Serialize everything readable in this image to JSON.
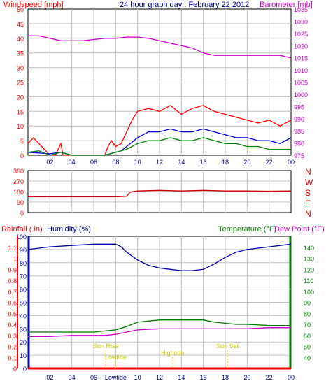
{
  "chart_data": [
    {
      "type": "line",
      "title": "24 hour graph day : February 22 2012",
      "left_axis_label": "Windspeed [mph]",
      "right_axis_label": "Barometer [mb]",
      "left_axis": {
        "min": 0,
        "max": 50,
        "ticks": [
          0,
          5,
          10,
          15,
          20,
          25,
          30,
          35,
          40,
          45,
          50
        ]
      },
      "right_axis": {
        "min": 975,
        "max": 1035,
        "ticks": [
          975,
          980,
          985,
          990,
          995,
          1000,
          1005,
          1010,
          1015,
          1020,
          1025,
          1030,
          1035
        ]
      },
      "x_axis": {
        "min": 0,
        "max": 24,
        "tick_labels": [
          "02",
          "04",
          "06",
          "08",
          "10",
          "12",
          "14",
          "16",
          "18",
          "20",
          "22",
          "00"
        ]
      },
      "series": [
        {
          "color": "#ff0000",
          "axis": "left",
          "points": [
            [
              0,
              4
            ],
            [
              0.5,
              6
            ],
            [
              1,
              4
            ],
            [
              1.5,
              2
            ],
            [
              2,
              0
            ],
            [
              2.5,
              0
            ],
            [
              3,
              4
            ],
            [
              3.2,
              0
            ],
            [
              4,
              0
            ],
            [
              5,
              0
            ],
            [
              6,
              0
            ],
            [
              7,
              0
            ],
            [
              7.3,
              3
            ],
            [
              7.6,
              5
            ],
            [
              8,
              3
            ],
            [
              8.5,
              4
            ],
            [
              9,
              8
            ],
            [
              9.5,
              12
            ],
            [
              10,
              15
            ],
            [
              11,
              16
            ],
            [
              12,
              15
            ],
            [
              13,
              17
            ],
            [
              14,
              14
            ],
            [
              15,
              16
            ],
            [
              16,
              17
            ],
            [
              17,
              15
            ],
            [
              18,
              14
            ],
            [
              19,
              13
            ],
            [
              20,
              12
            ],
            [
              21,
              11
            ],
            [
              22,
              12
            ],
            [
              23,
              10
            ],
            [
              24,
              12
            ]
          ]
        },
        {
          "color": "#0000cc",
          "axis": "left",
          "points": [
            [
              0,
              1
            ],
            [
              2,
              0.5
            ],
            [
              3,
              1
            ],
            [
              4,
              0
            ],
            [
              7,
              0
            ],
            [
              8,
              1
            ],
            [
              8.5,
              1.5
            ],
            [
              9,
              3
            ],
            [
              10,
              6
            ],
            [
              11,
              8
            ],
            [
              12,
              8
            ],
            [
              13,
              9
            ],
            [
              14,
              8
            ],
            [
              15,
              8
            ],
            [
              16,
              9
            ],
            [
              17,
              8
            ],
            [
              18,
              7
            ],
            [
              19,
              6
            ],
            [
              20,
              6
            ],
            [
              21,
              5
            ],
            [
              22,
              5
            ],
            [
              23,
              4
            ],
            [
              24,
              6
            ]
          ]
        },
        {
          "color": "#008000",
          "axis": "left",
          "points": [
            [
              0,
              1
            ],
            [
              1,
              1.5
            ],
            [
              2,
              0
            ],
            [
              3,
              1
            ],
            [
              4,
              0
            ],
            [
              7,
              0
            ],
            [
              8,
              1
            ],
            [
              9,
              2
            ],
            [
              10,
              4
            ],
            [
              11,
              5
            ],
            [
              12,
              5
            ],
            [
              13,
              6
            ],
            [
              14,
              5
            ],
            [
              15,
              5
            ],
            [
              16,
              6
            ],
            [
              17,
              5
            ],
            [
              18,
              4
            ],
            [
              19,
              4
            ],
            [
              20,
              3
            ],
            [
              21,
              3
            ],
            [
              22,
              2
            ],
            [
              23,
              2
            ],
            [
              24,
              2
            ]
          ]
        },
        {
          "color": "#cc00cc",
          "axis": "right",
          "points": [
            [
              0,
              1024
            ],
            [
              1,
              1024
            ],
            [
              2,
              1023
            ],
            [
              3,
              1022
            ],
            [
              4,
              1022
            ],
            [
              5,
              1022
            ],
            [
              6,
              1022.5
            ],
            [
              7,
              1023
            ],
            [
              8,
              1023
            ],
            [
              9,
              1023.5
            ],
            [
              10,
              1023.5
            ],
            [
              11,
              1023
            ],
            [
              12,
              1022
            ],
            [
              13,
              1021
            ],
            [
              14,
              1020
            ],
            [
              15,
              1019
            ],
            [
              16,
              1017
            ],
            [
              17,
              1016
            ],
            [
              18,
              1016
            ],
            [
              19,
              1016
            ],
            [
              20,
              1016
            ],
            [
              21,
              1016
            ],
            [
              22,
              1016
            ],
            [
              23,
              1016
            ],
            [
              24,
              1015
            ]
          ]
        }
      ]
    },
    {
      "type": "line",
      "left_axis": {
        "min": 0,
        "max": 360,
        "ticks": [
          0,
          90,
          180,
          270,
          360
        ]
      },
      "right_axis_labels": [
        "N",
        "W",
        "S",
        "E",
        "N"
      ],
      "x_axis": {
        "min": 0,
        "max": 24
      },
      "series": [
        {
          "color": "#cc0000",
          "points": [
            [
              0,
              135
            ],
            [
              4,
              135
            ],
            [
              8,
              135
            ],
            [
              9,
              140
            ],
            [
              9.3,
              175
            ],
            [
              10,
              185
            ],
            [
              12,
              190
            ],
            [
              14,
              185
            ],
            [
              16,
              190
            ],
            [
              18,
              185
            ],
            [
              20,
              185
            ],
            [
              22,
              183
            ],
            [
              24,
              185
            ]
          ]
        }
      ]
    },
    {
      "type": "line",
      "left_axis_label": "Rainfall (.in)",
      "left_axis2_label": "Humidity (%)",
      "right_axis_label": "Temperature (°F)",
      "right_axis2_label": "Dew Point (°F)",
      "rain_axis": {
        "min": 0,
        "max": 1.2,
        "ticks": [
          0,
          0.1,
          0.2,
          0.3,
          0.4,
          0.5,
          0.6,
          0.7,
          0.8,
          0.9,
          1,
          1.1
        ]
      },
      "humidity_axis": {
        "min": 0,
        "max": 100,
        "ticks": [
          0,
          10,
          20,
          30,
          40,
          50,
          60,
          70,
          80,
          90,
          100
        ]
      },
      "temp_axis": {
        "min": 30,
        "max": 150,
        "ticks": [
          40,
          50,
          60,
          70,
          80,
          90,
          100,
          110,
          120,
          130,
          140
        ]
      },
      "x_axis": {
        "min": 0,
        "max": 24,
        "tick_labels": [
          "02",
          "04",
          "06",
          "Lowtide",
          "10",
          "12",
          "14",
          "16",
          "18",
          "20",
          "22",
          "00"
        ]
      },
      "series": [
        {
          "name": "Humidity",
          "color": "#0000aa",
          "axis": "humidity",
          "points": [
            [
              0,
              90
            ],
            [
              1,
              91
            ],
            [
              2,
              92
            ],
            [
              4,
              93
            ],
            [
              6,
              94
            ],
            [
              7,
              94
            ],
            [
              8,
              94
            ],
            [
              8.5,
              92
            ],
            [
              9,
              88
            ],
            [
              10,
              82
            ],
            [
              11,
              78
            ],
            [
              12,
              76
            ],
            [
              13,
              75
            ],
            [
              14,
              74
            ],
            [
              15,
              74
            ],
            [
              16,
              75
            ],
            [
              17,
              79
            ],
            [
              18,
              84
            ],
            [
              19,
              88
            ],
            [
              20,
              90
            ],
            [
              21,
              91
            ],
            [
              22,
              92
            ],
            [
              23,
              93
            ],
            [
              24,
              94
            ]
          ]
        },
        {
          "name": "Temperature",
          "color": "#007700",
          "axis": "temp",
          "points": [
            [
              0,
              63
            ],
            [
              2,
              63
            ],
            [
              4,
              63
            ],
            [
              6,
              63
            ],
            [
              7,
              64
            ],
            [
              8,
              65
            ],
            [
              9,
              68
            ],
            [
              10,
              72
            ],
            [
              11,
              73
            ],
            [
              12,
              74
            ],
            [
              13,
              74
            ],
            [
              14,
              74
            ],
            [
              15,
              74
            ],
            [
              16,
              74
            ],
            [
              17,
              72
            ],
            [
              18,
              71
            ],
            [
              19,
              70
            ],
            [
              20,
              70
            ],
            [
              22,
              69
            ],
            [
              24,
              69
            ]
          ]
        },
        {
          "name": "Dew Point",
          "color": "#cc00cc",
          "axis": "temp",
          "points": [
            [
              0,
              59
            ],
            [
              2,
              59
            ],
            [
              4,
              60
            ],
            [
              6,
              60
            ],
            [
              7,
              60
            ],
            [
              8,
              61
            ],
            [
              9,
              63
            ],
            [
              10,
              65
            ],
            [
              12,
              66
            ],
            [
              14,
              66
            ],
            [
              16,
              66
            ],
            [
              18,
              66
            ],
            [
              20,
              66
            ],
            [
              22,
              67
            ],
            [
              24,
              67
            ]
          ]
        },
        {
          "name": "Rainfall",
          "color": "#ff0000",
          "axis": "rain",
          "points": [
            [
              0,
              0
            ],
            [
              24,
              0
            ]
          ]
        }
      ],
      "events": [
        {
          "label": "Sun Rise",
          "x": 7.1
        },
        {
          "label": "Lowtide",
          "x": 8.0
        },
        {
          "label": "Hightide",
          "x": 13.2
        },
        {
          "label": "Sun Set",
          "x": 18.2
        }
      ]
    }
  ],
  "colors": {
    "grid": "#c0c0c0",
    "wind_axis": "#ff0000",
    "baro_axis": "#cc00cc",
    "humidity_axis": "#0000aa",
    "temp_axis": "#008000"
  }
}
